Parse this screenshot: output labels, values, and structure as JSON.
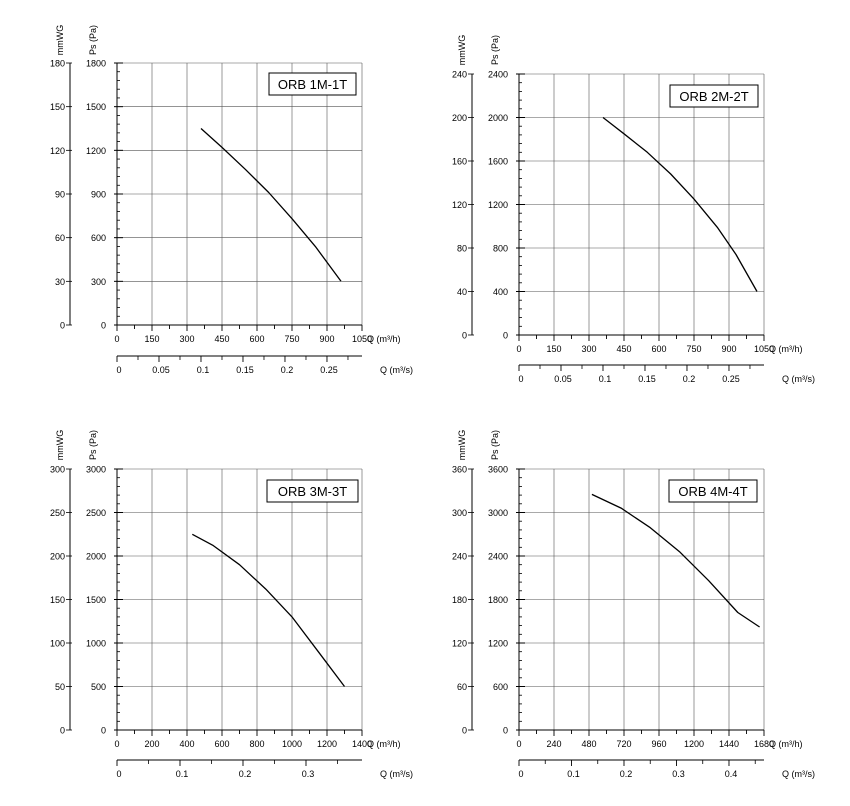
{
  "chart_data": [
    {
      "type": "line",
      "title": "ORB 1M-1T",
      "ylabel": "Ps (Pa)",
      "ylabel2": "mmWG",
      "xlabel": "Q (m³/h)",
      "xlabel2": "Q (m³/s)",
      "xlim": [
        0,
        1050
      ],
      "ylim": [
        0,
        1800
      ],
      "x_ticks": [
        "0",
        "150",
        "300",
        "450",
        "600",
        "750",
        "900",
        "1050"
      ],
      "y_ticks": [
        "0",
        "300",
        "600",
        "900",
        "1200",
        "1500",
        "1800"
      ],
      "y2_ticks": [
        "0",
        "30",
        "60",
        "90",
        "120",
        "150",
        "180"
      ],
      "x2_ticks": [
        "0",
        "0.05",
        "0.1",
        "0.15",
        "0.2",
        "0.25"
      ],
      "x2_max": 0.2917,
      "grid": true,
      "series": [
        {
          "x": [
            360,
            450,
            550,
            650,
            750,
            850,
            960
          ],
          "y": [
            1350,
            1220,
            1070,
            910,
            730,
            540,
            300
          ]
        }
      ]
    },
    {
      "type": "line",
      "title": "ORB 2M-2T",
      "ylabel": "Ps (Pa)",
      "ylabel2": "mmWG",
      "xlabel": "Q (m³/h)",
      "xlabel2": "Q (m³/s)",
      "xlim": [
        0,
        1050
      ],
      "ylim": [
        0,
        2400
      ],
      "x_ticks": [
        "0",
        "150",
        "300",
        "450",
        "600",
        "750",
        "900",
        "1050"
      ],
      "y_ticks": [
        "0",
        "400",
        "800",
        "1200",
        "1600",
        "2000",
        "2400"
      ],
      "y2_ticks": [
        "0",
        "40",
        "80",
        "120",
        "160",
        "200",
        "240"
      ],
      "x2_ticks": [
        "0",
        "0.05",
        "0.1",
        "0.15",
        "0.2",
        "0.25"
      ],
      "x2_max": 0.2917,
      "grid": true,
      "series": [
        {
          "x": [
            360,
            450,
            550,
            650,
            750,
            850,
            930,
            1020
          ],
          "y": [
            2000,
            1850,
            1680,
            1480,
            1250,
            990,
            740,
            400
          ]
        }
      ]
    },
    {
      "type": "line",
      "title": "ORB 3M-3T",
      "ylabel": "Ps (Pa)",
      "ylabel2": "mmWG",
      "xlabel": "Q (m³/h)",
      "xlabel2": "Q (m³/s)",
      "xlim": [
        0,
        1400
      ],
      "ylim": [
        0,
        3000
      ],
      "x_ticks": [
        "0",
        "200",
        "400",
        "600",
        "800",
        "1000",
        "1200",
        "1400"
      ],
      "y_ticks": [
        "0",
        "500",
        "1000",
        "1500",
        "2000",
        "2500",
        "3000"
      ],
      "y2_ticks": [
        "0",
        "50",
        "100",
        "150",
        "200",
        "250",
        "300"
      ],
      "x2_ticks": [
        "0",
        "0.1",
        "0.2",
        "0.3"
      ],
      "x2_max": 0.3889,
      "grid": true,
      "series": [
        {
          "x": [
            430,
            550,
            700,
            850,
            1000,
            1150,
            1300
          ],
          "y": [
            2250,
            2120,
            1900,
            1620,
            1300,
            900,
            500
          ]
        }
      ]
    },
    {
      "type": "line",
      "title": "ORB 4M-4T",
      "ylabel": "Ps (Pa)",
      "ylabel2": "mmWG",
      "xlabel": "Q (m³/h)",
      "xlabel2": "Q (m³/s)",
      "xlim": [
        0,
        1680
      ],
      "ylim": [
        0,
        3600
      ],
      "x_ticks": [
        "0",
        "240",
        "480",
        "720",
        "960",
        "1200",
        "1440",
        "1680"
      ],
      "y_ticks": [
        "0",
        "600",
        "1200",
        "1800",
        "2400",
        "3000",
        "3600"
      ],
      "y2_ticks": [
        "0",
        "60",
        "120",
        "180",
        "240",
        "300",
        "360"
      ],
      "x2_ticks": [
        "0",
        "0.1",
        "0.2",
        "0.3",
        "0.4"
      ],
      "x2_max": 0.4667,
      "grid": true,
      "series": [
        {
          "x": [
            500,
            700,
            900,
            1100,
            1300,
            1500,
            1650
          ],
          "y": [
            3250,
            3060,
            2790,
            2460,
            2060,
            1620,
            1420
          ]
        }
      ]
    }
  ]
}
